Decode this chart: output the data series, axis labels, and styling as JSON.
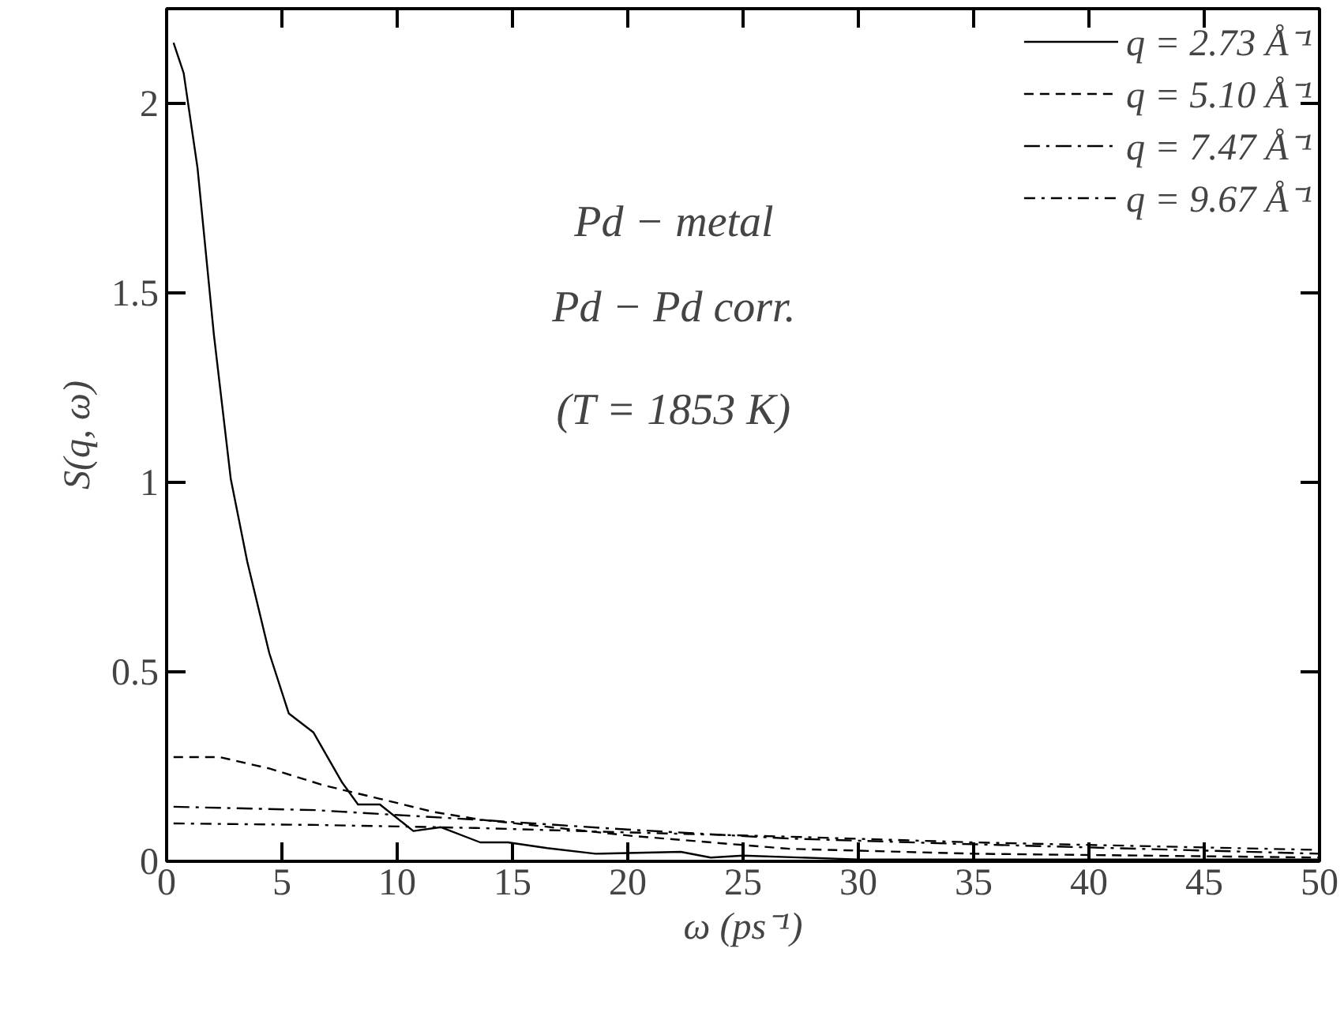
{
  "chart_data": {
    "type": "line",
    "xlabel": "ω (ps⁻¹)",
    "ylabel": "S(q, ω)",
    "xlim": [
      0,
      50
    ],
    "ylim": [
      0,
      2.25
    ],
    "xticks": [
      0,
      5,
      10,
      15,
      20,
      25,
      30,
      35,
      40,
      45,
      50
    ],
    "yticks": [
      0,
      0.5,
      1,
      1.5,
      2
    ],
    "grid": false,
    "legend": "top right",
    "annotations": [
      "Pd − metal",
      "Pd − Pd corr.",
      "(T = 1853 K)"
    ],
    "series": [
      {
        "name": "q = 2.73 Å⁻¹",
        "color": "#000000",
        "line_style": "solid",
        "x": [
          0.3,
          0.74,
          1.34,
          2.05,
          2.78,
          3.5,
          4.45,
          5.3,
          6.37,
          7.59,
          8.3,
          9.25,
          10.7,
          11.9,
          13.6,
          14.8,
          16.5,
          18.6,
          22.3,
          23.6,
          25,
          30,
          35,
          40,
          45,
          50
        ],
        "values": [
          2.16,
          2.08,
          1.83,
          1.39,
          1.01,
          0.79,
          0.55,
          0.39,
          0.34,
          0.21,
          0.15,
          0.15,
          0.08,
          0.09,
          0.05,
          0.05,
          0.035,
          0.02,
          0.025,
          0.01,
          0.015,
          0.005,
          0.005,
          0.005,
          0.005,
          0.005
        ]
      },
      {
        "name": "q = 5.10 Å⁻¹",
        "color": "#000000",
        "line_style": "dashed",
        "x": [
          0.3,
          2.3,
          4.45,
          6.85,
          9.25,
          11.6,
          13.6,
          20.2,
          27,
          35,
          50
        ],
        "values": [
          0.275,
          0.275,
          0.245,
          0.2,
          0.165,
          0.13,
          0.11,
          0.067,
          0.033,
          0.02,
          0.01
        ]
      },
      {
        "name": "q = 7.47 Å⁻¹",
        "color": "#000000",
        "line_style": "dashdot",
        "x": [
          0.3,
          6.5,
          13.4,
          20.2,
          27,
          35,
          50
        ],
        "values": [
          0.144,
          0.135,
          0.11,
          0.083,
          0.06,
          0.045,
          0.02
        ]
      },
      {
        "name": "q = 9.67 Å⁻¹",
        "color": "#000000",
        "line_style": "dashdot",
        "x": [
          0.3,
          6.5,
          13.4,
          20.2,
          27,
          35,
          50
        ],
        "values": [
          0.1,
          0.096,
          0.088,
          0.076,
          0.065,
          0.05,
          0.03
        ]
      }
    ]
  }
}
